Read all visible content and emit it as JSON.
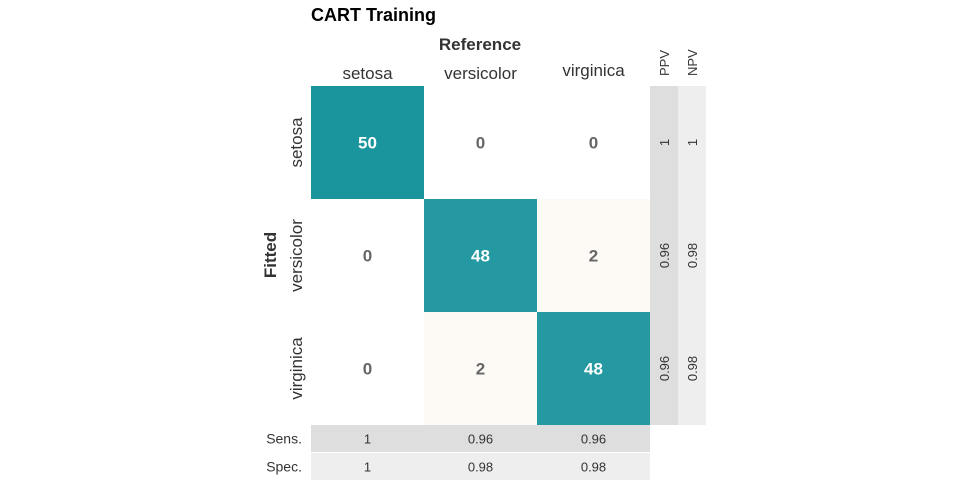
{
  "chart_data": {
    "type": "heatmap",
    "title": "CART Training",
    "xlabel": "Reference",
    "ylabel": "Fitted",
    "classes": [
      "setosa",
      "versicolor",
      "virginica"
    ],
    "matrix": [
      [
        50,
        0,
        0
      ],
      [
        0,
        48,
        2
      ],
      [
        0,
        2,
        48
      ]
    ],
    "matrix_labels": [
      [
        "50",
        "0",
        "0"
      ],
      [
        "0",
        "48",
        "2"
      ],
      [
        "0",
        "2",
        "48"
      ]
    ],
    "row_stats": {
      "headers": [
        "PPV",
        "NPV"
      ],
      "PPV": [
        "1",
        "0.96",
        "0.96"
      ],
      "NPV": [
        "1",
        "0.98",
        "0.98"
      ]
    },
    "col_stats": {
      "headers": [
        "Sens.",
        "Spec."
      ],
      "Sens.": [
        "1",
        "0.96",
        "0.96"
      ],
      "Spec.": [
        "1",
        "0.98",
        "0.98"
      ]
    },
    "colors": {
      "high": "#1b959d",
      "low": "#ffffff",
      "offdiag_tint": "#fdfaf6",
      "stat_dark": "#dedede",
      "stat_light": "#eeeeee",
      "label_on_dark": "#ffffff",
      "label_on_light": "#666666"
    }
  }
}
